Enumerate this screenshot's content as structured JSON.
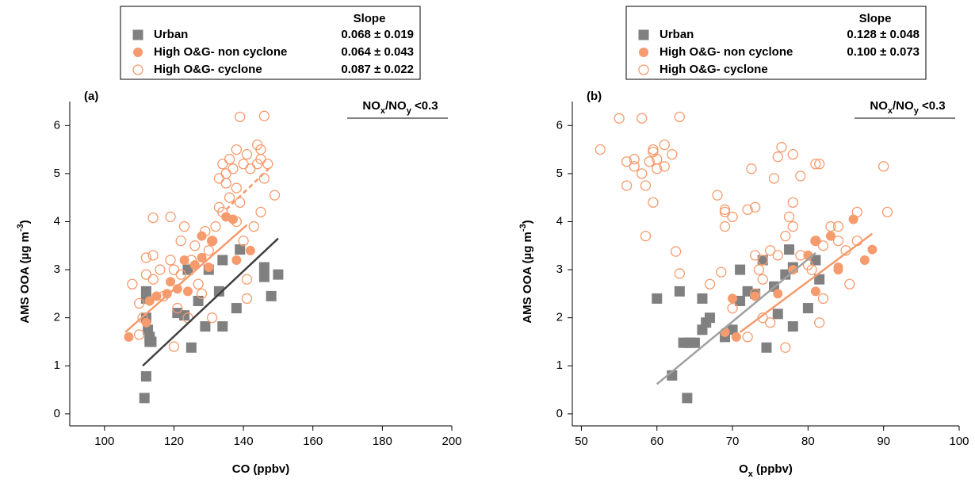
{
  "chart_data": [
    {
      "type": "scatter",
      "panel_label": "(a)",
      "annotation": [
        {
          "text": "NO"
        },
        {
          "text": "x",
          "sub": true
        },
        {
          "text": "/NO"
        },
        {
          "text": "y",
          "sub": true
        },
        {
          "text": " <0.3"
        }
      ],
      "x_label": [
        {
          "text": "CO (ppbv)"
        }
      ],
      "y_label": [
        {
          "text": "AMS OOA (µg m"
        },
        {
          "text": "-3",
          "sup": true
        },
        {
          "text": ")"
        }
      ],
      "xlim": [
        90,
        200
      ],
      "ylim": [
        -0.25,
        6.5
      ],
      "xticks": [
        100,
        120,
        140,
        160,
        180,
        200
      ],
      "yticks": [
        0,
        1,
        2,
        3,
        4,
        5,
        6
      ],
      "legend_title": "Slope",
      "series": [
        {
          "name": "Urban",
          "color": "#808080",
          "marker": "square",
          "filled": true,
          "slope": "0.068 ± 0.019",
          "x": [
            112,
            112,
            111.5,
            112,
            112,
            112.5,
            113,
            113,
            113.5,
            121,
            123,
            124,
            125,
            127,
            129,
            130,
            133,
            134,
            134,
            138,
            139,
            146,
            146,
            148,
            150
          ],
          "y": [
            2.55,
            2.4,
            0.33,
            0.78,
            2.0,
            1.75,
            1.5,
            1.6,
            1.5,
            2.1,
            2.05,
            3.0,
            1.38,
            2.35,
            1.82,
            3.0,
            2.55,
            3.2,
            1.82,
            2.2,
            3.42,
            2.85,
            3.05,
            2.45,
            2.9
          ]
        },
        {
          "name": "High O&G- non cyclone",
          "color": "#f59b6d",
          "marker": "circle",
          "filled": true,
          "slope": "0.064 ± 0.043",
          "x": [
            107,
            112,
            113,
            115,
            118,
            119,
            121,
            123,
            124,
            126,
            128,
            128,
            130,
            131,
            135,
            137,
            138,
            142
          ],
          "y": [
            1.6,
            1.9,
            2.35,
            2.45,
            2.5,
            2.75,
            2.6,
            3.2,
            2.55,
            3.1,
            3.7,
            3.25,
            3.05,
            3.6,
            4.1,
            4.05,
            3.2,
            3.4
          ]
        },
        {
          "name": "High O&G- cyclone",
          "color": "#f59b6d",
          "marker": "circle",
          "filled": false,
          "slope": "0.087 ± 0.022",
          "x": [
            108,
            110,
            110,
            111,
            112,
            112,
            114,
            114,
            114,
            116,
            117,
            119,
            119,
            120,
            120,
            121,
            122,
            122,
            123,
            124,
            125,
            126,
            127,
            128,
            129,
            130,
            131,
            132,
            133,
            133,
            134,
            134,
            135,
            135,
            136,
            136,
            137,
            138,
            138,
            138,
            139,
            139,
            140,
            140,
            141,
            141,
            142,
            143,
            144,
            144,
            145,
            145,
            145,
            146,
            146,
            147,
            149,
            141,
            131
          ],
          "y": [
            2.7,
            2.3,
            1.65,
            2.0,
            2.9,
            3.25,
            4.08,
            3.3,
            2.8,
            3.0,
            2.45,
            3.2,
            4.1,
            1.4,
            3.0,
            2.2,
            3.6,
            2.9,
            3.9,
            2.0,
            3.2,
            3.5,
            2.7,
            2.5,
            3.8,
            3.4,
            3.6,
            3.9,
            4.9,
            4.3,
            4.2,
            5.2,
            5.0,
            4.8,
            5.3,
            4.5,
            5.1,
            4.0,
            4.7,
            5.5,
            6.18,
            4.4,
            5.2,
            3.6,
            5.4,
            2.8,
            5.1,
            3.9,
            5.6,
            5.2,
            5.5,
            5.3,
            4.2,
            6.2,
            4.9,
            5.2,
            4.55,
            2.4,
            2.0
          ]
        }
      ],
      "fit_lines": [
        {
          "color": "#404040",
          "dashed": false,
          "x": [
            111,
            150
          ],
          "y": [
            1.0,
            3.65
          ]
        },
        {
          "color": "#f59b6d",
          "dashed": false,
          "x": [
            106,
            141
          ],
          "y": [
            1.7,
            3.93
          ]
        },
        {
          "color": "#f59b6d",
          "dashed": true,
          "x": [
            135,
            148
          ],
          "y": [
            4.25,
            5.15
          ]
        }
      ]
    },
    {
      "type": "scatter",
      "panel_label": "(b)",
      "annotation": [
        {
          "text": "NO"
        },
        {
          "text": "x",
          "sub": true
        },
        {
          "text": "/NO"
        },
        {
          "text": "y",
          "sub": true
        },
        {
          "text": " <0.3"
        }
      ],
      "x_label": [
        {
          "text": "O"
        },
        {
          "text": "x",
          "sub": true
        },
        {
          "text": " (ppbv)"
        }
      ],
      "y_label": [
        {
          "text": "AMS OOA (µg m"
        },
        {
          "text": "-3",
          "sup": true
        },
        {
          "text": ")"
        }
      ],
      "xlim": [
        48.8,
        100
      ],
      "ylim": [
        -0.25,
        6.5
      ],
      "xticks": [
        50,
        60,
        70,
        80,
        90,
        100
      ],
      "yticks": [
        0,
        1,
        2,
        3,
        4,
        5,
        6
      ],
      "legend_title": "Slope",
      "series": [
        {
          "name": "Urban",
          "color": "#808080",
          "marker": "square",
          "filled": true,
          "slope": "0.128 ± 0.048",
          "x": [
            60,
            62,
            63,
            63.5,
            64,
            64,
            64.5,
            65,
            66,
            66,
            66.5,
            67,
            69,
            70,
            71,
            71,
            72,
            73,
            74,
            74.5,
            75.5,
            76,
            77,
            77.5,
            78,
            78,
            80,
            81,
            81.5
          ],
          "y": [
            2.4,
            0.8,
            2.55,
            1.48,
            1.48,
            0.33,
            1.48,
            1.48,
            2.4,
            1.75,
            1.9,
            2.0,
            1.6,
            1.75,
            3.0,
            2.35,
            2.55,
            2.5,
            3.2,
            1.38,
            2.65,
            2.08,
            2.9,
            3.42,
            3.05,
            1.82,
            2.2,
            3.2,
            2.8
          ]
        },
        {
          "name": "High O&G- non cyclone",
          "color": "#f59b6d",
          "marker": "circle",
          "filled": true,
          "slope": "0.100 ± 0.073",
          "x": [
            69,
            70,
            70.5,
            73,
            76,
            78,
            80,
            81,
            81,
            83,
            84,
            84,
            86,
            87.5,
            88.5
          ],
          "y": [
            1.7,
            2.4,
            1.6,
            2.45,
            2.5,
            3.0,
            3.3,
            3.6,
            2.55,
            3.7,
            3.05,
            3.0,
            4.05,
            3.2,
            3.42
          ]
        },
        {
          "name": "High O&G- cyclone",
          "color": "#f59b6d",
          "marker": "circle",
          "filled": false,
          "x": [
            52.5,
            55,
            56,
            56,
            57,
            57,
            58,
            58,
            58.5,
            58.5,
            59,
            59.5,
            59.5,
            59.5,
            60,
            60,
            61,
            61,
            62,
            62.5,
            63,
            63,
            67,
            68,
            68.5,
            69,
            69,
            69,
            70,
            70,
            72,
            72,
            72.5,
            73,
            73,
            73,
            73.5,
            74,
            74,
            74,
            75,
            75,
            75.5,
            76,
            76,
            76.5,
            77,
            77,
            77.5,
            78,
            78,
            78,
            79,
            79,
            80,
            80.5,
            81,
            81,
            81.5,
            81.5,
            82,
            82,
            83,
            84,
            84,
            85,
            85.5,
            86.5,
            86.5,
            90,
            90.5
          ],
          "y": [
            5.5,
            6.15,
            5.25,
            4.75,
            5.15,
            5.3,
            6.15,
            5.0,
            3.7,
            4.75,
            5.25,
            5.45,
            5.5,
            4.4,
            5.1,
            5.3,
            5.6,
            5.15,
            5.4,
            3.38,
            2.92,
            6.18,
            2.7,
            4.55,
            2.95,
            4.25,
            3.9,
            4.2,
            4.1,
            2.2,
            4.25,
            1.6,
            5.1,
            4.3,
            3.3,
            2.5,
            3.0,
            3.2,
            2.8,
            2.0,
            3.4,
            1.9,
            4.9,
            5.35,
            3.3,
            5.55,
            1.38,
            3.7,
            4.1,
            5.4,
            4.4,
            3.9,
            4.95,
            3.3,
            3.1,
            3.0,
            5.2,
            3.6,
            5.2,
            1.9,
            2.4,
            3.5,
            3.9,
            3.6,
            3.9,
            3.4,
            2.7,
            4.2,
            3.6,
            5.15,
            4.2
          ]
        }
      ],
      "fit_lines": [
        {
          "color": "#a0a0a0",
          "dashed": false,
          "x": [
            60,
            81
          ],
          "y": [
            0.62,
            3.35
          ]
        },
        {
          "color": "#f59b6d",
          "dashed": false,
          "x": [
            71,
            88.5
          ],
          "y": [
            1.7,
            3.75
          ]
        }
      ]
    }
  ]
}
